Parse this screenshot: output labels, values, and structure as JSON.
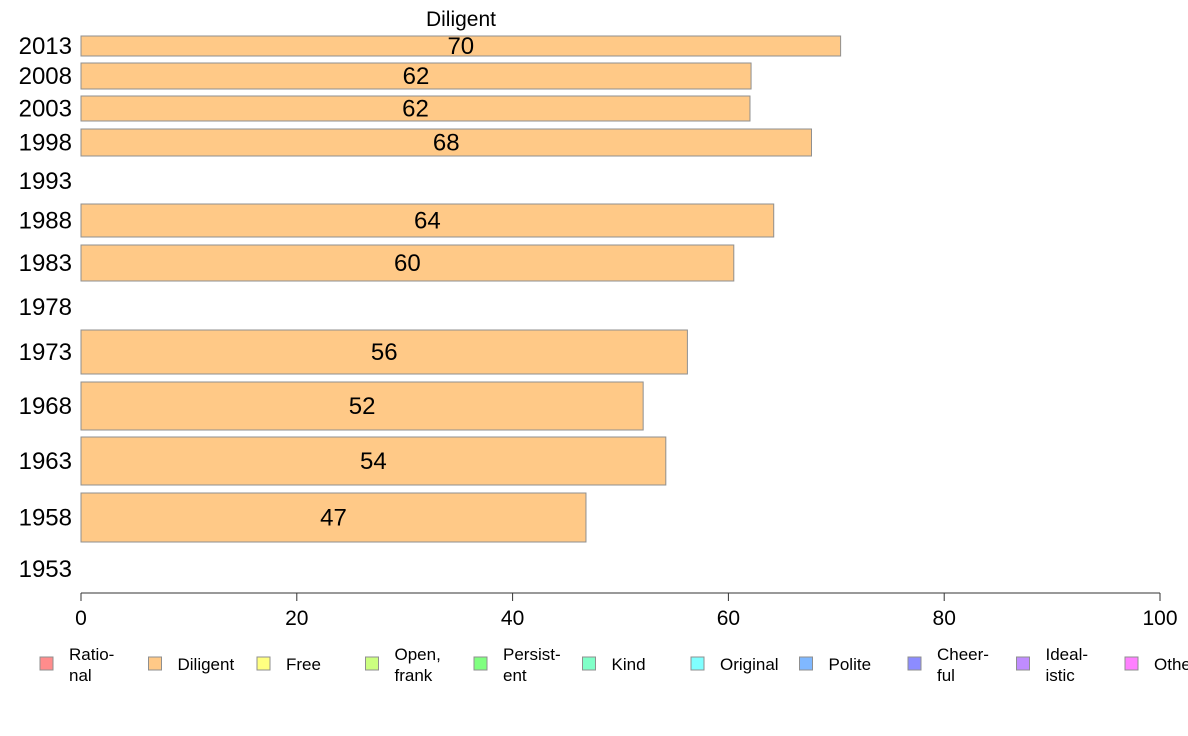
{
  "chart_data": {
    "type": "bar",
    "orientation": "horizontal",
    "title": "Diligent",
    "xlabel": "",
    "ylabel": "",
    "xlim": [
      0,
      100
    ],
    "xticks": [
      0,
      20,
      40,
      60,
      80,
      100
    ],
    "grid": false,
    "categories": [
      "2013",
      "2008",
      "2003",
      "1998",
      "1993",
      "1988",
      "1983",
      "1978",
      "1973",
      "1968",
      "1963",
      "1958",
      "1953"
    ],
    "series": [
      {
        "name": "Diligent",
        "color": "#ffc987",
        "values": [
          70.4,
          62.1,
          62.0,
          67.7,
          null,
          64.2,
          60.5,
          null,
          56.2,
          52.1,
          54.2,
          46.8,
          null
        ],
        "labels": [
          "70",
          "62",
          "62",
          "68",
          "",
          "64",
          "60",
          "",
          "56",
          "52",
          "54",
          "47",
          ""
        ]
      }
    ],
    "legend_position": "bottom",
    "legend": [
      {
        "lines": [
          "Ratio-",
          "nal"
        ],
        "color": "#ff8c8c"
      },
      {
        "lines": [
          "Diligent"
        ],
        "color": "#ffc987"
      },
      {
        "lines": [
          "Free"
        ],
        "color": "#ffff80"
      },
      {
        "lines": [
          "Open,",
          "frank"
        ],
        "color": "#ccff80"
      },
      {
        "lines": [
          "Persist-",
          "ent"
        ],
        "color": "#80ff80"
      },
      {
        "lines": [
          "Kind"
        ],
        "color": "#80ffc8"
      },
      {
        "lines": [
          "Original"
        ],
        "color": "#80ffff"
      },
      {
        "lines": [
          "Polite"
        ],
        "color": "#80b8ff"
      },
      {
        "lines": [
          "Cheer-",
          "ful"
        ],
        "color": "#8c8cff"
      },
      {
        "lines": [
          "Ideal-",
          "istic"
        ],
        "color": "#c08cff"
      },
      {
        "lines": [
          "Other"
        ],
        "color": "#ff80ff"
      }
    ]
  }
}
